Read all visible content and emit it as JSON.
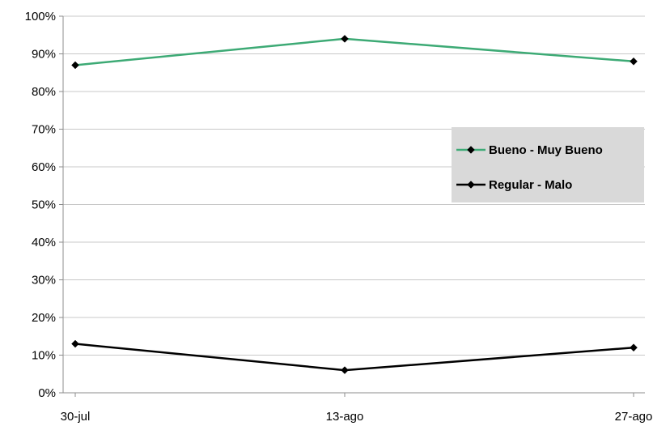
{
  "chart_data": {
    "type": "line",
    "categories": [
      "30-jul",
      "13-ago",
      "27-ago"
    ],
    "series": [
      {
        "name": "Bueno - Muy Bueno",
        "values": [
          87,
          94,
          88
        ],
        "color": "#3daa75"
      },
      {
        "name": "Regular - Malo",
        "values": [
          13,
          6,
          12
        ],
        "color": "#000000"
      }
    ],
    "y_ticks": [
      "0%",
      "10%",
      "20%",
      "30%",
      "40%",
      "50%",
      "60%",
      "70%",
      "80%",
      "90%",
      "100%"
    ],
    "ylim": [
      0,
      100
    ],
    "y_unit": "%",
    "grid": true,
    "legend": {
      "placement": "right",
      "background": "#d9d9d9"
    },
    "gridline_color": "#c8c8c8",
    "marker": "diamond"
  }
}
